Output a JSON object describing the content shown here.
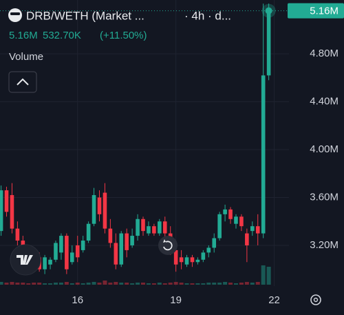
{
  "chart_data": {
    "type": "candlestick",
    "title": "DRB/WETH (Market ...",
    "interval": "· 4h · d...",
    "last_price": "5.16M",
    "change": "532.70K",
    "change_pct": "(+11.50%)",
    "volume_label": "Volume",
    "price_line": {
      "value": 5160000,
      "label": "5.16M"
    },
    "up_color": "#22ab94",
    "down_color": "#f23645",
    "grid": true,
    "ylim": [
      2860000,
      5250000
    ],
    "yticks": [
      {
        "value": 3200000,
        "label": "3.20M"
      },
      {
        "value": 3600000,
        "label": "3.60M"
      },
      {
        "value": 4000000,
        "label": "4.00M"
      },
      {
        "value": 4400000,
        "label": "4.40M"
      },
      {
        "value": 4800000,
        "label": "4.80M"
      }
    ],
    "xlim": [
      -0.2,
      52.7
    ],
    "xticks": [
      {
        "value": 14,
        "label": "16"
      },
      {
        "value": 32,
        "label": "19"
      },
      {
        "value": 50,
        "label": "22"
      }
    ],
    "open": [
      3320000,
      3660000,
      3620000,
      3340000,
      3240000,
      3140000,
      3060000,
      3100000,
      3000000,
      3040000,
      3080000,
      3140000,
      3280000,
      3060000,
      3200000,
      3160000,
      3240000,
      3380000,
      3600000,
      3640000,
      3340000,
      3220000,
      3040000,
      3300000,
      3200000,
      3280000,
      3420000,
      3300000,
      3360000,
      3300000,
      3400000,
      3300000,
      3160000,
      3100000,
      3040000,
      3100000,
      3060000,
      3080000,
      3140000,
      3180000,
      3260000,
      3460000,
      3500000,
      3380000,
      3440000,
      3300000,
      3320000,
      3360000,
      3300000,
      4620000
    ],
    "high": [
      3700000,
      3690000,
      3720000,
      3400000,
      3280000,
      3180000,
      3120000,
      3140000,
      3120000,
      3100000,
      3240000,
      3300000,
      3300000,
      3200000,
      3280000,
      3280000,
      3400000,
      3680000,
      3660000,
      3720000,
      3420000,
      3300000,
      3320000,
      3340000,
      3340000,
      3460000,
      3440000,
      3400000,
      3380000,
      3420000,
      3440000,
      3360000,
      3220000,
      3160000,
      3120000,
      3120000,
      3100000,
      3160000,
      3200000,
      3300000,
      3480000,
      3540000,
      3520000,
      3460000,
      3460000,
      3340000,
      3400000,
      3460000,
      5220000,
      5220000
    ],
    "low": [
      3280000,
      3440000,
      3300000,
      3200000,
      3100000,
      3020000,
      2980000,
      2980000,
      2960000,
      3000000,
      3060000,
      3080000,
      2960000,
      3040000,
      3060000,
      3140000,
      3220000,
      3360000,
      3400000,
      3300000,
      3180000,
      3000000,
      3020000,
      3100000,
      3180000,
      3240000,
      3280000,
      3280000,
      3280000,
      3280000,
      3260000,
      3120000,
      2980000,
      3000000,
      3020000,
      3020000,
      3040000,
      3060000,
      3100000,
      3140000,
      3240000,
      3400000,
      3380000,
      3340000,
      3320000,
      3060000,
      3280000,
      3200000,
      3260000,
      4580000
    ],
    "close": [
      3660000,
      3480000,
      3340000,
      3240000,
      3140000,
      3060000,
      3020000,
      3000000,
      3100000,
      3080000,
      3220000,
      3280000,
      3000000,
      3140000,
      3100000,
      3240000,
      3380000,
      3620000,
      3460000,
      3340000,
      3220000,
      3040000,
      3300000,
      3160000,
      3280000,
      3420000,
      3320000,
      3360000,
      3300000,
      3400000,
      3300000,
      3160000,
      3040000,
      3060000,
      3100000,
      3060000,
      3080000,
      3140000,
      3180000,
      3260000,
      3460000,
      3500000,
      3420000,
      3440000,
      3360000,
      3200000,
      3360000,
      3300000,
      4620000,
      5160000
    ],
    "volume": [
      4,
      3,
      4,
      3,
      3,
      2,
      3,
      3,
      2,
      2,
      3,
      3,
      4,
      2,
      3,
      2,
      3,
      4,
      3,
      6,
      3,
      4,
      3,
      3,
      2,
      3,
      3,
      2,
      2,
      3,
      2,
      3,
      4,
      3,
      2,
      2,
      2,
      2,
      3,
      3,
      3,
      4,
      3,
      2,
      3,
      4,
      3,
      4,
      28,
      26
    ]
  }
}
